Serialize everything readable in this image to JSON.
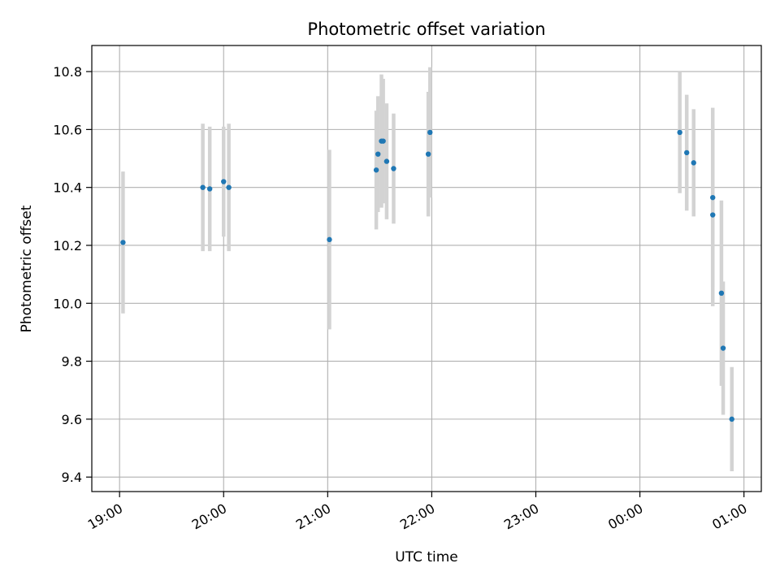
{
  "chart_data": {
    "type": "scatter",
    "title": "Photometric offset variation",
    "xlabel": "UTC time",
    "ylabel": "Photometric offset",
    "x_axis_kind": "time",
    "x_ticks": [
      "19:00",
      "20:00",
      "21:00",
      "22:00",
      "23:00",
      "00:00",
      "01:00"
    ],
    "xlim": [
      "18:44",
      "01:10"
    ],
    "ylim": [
      9.35,
      10.89
    ],
    "y_ticks": [
      9.4,
      9.6,
      9.8,
      10.0,
      10.2,
      10.4,
      10.6,
      10.8
    ],
    "grid": true,
    "colors": {
      "point": "#1f77b4",
      "errorbar": "#d3d3d3",
      "grid": "#b0b0b0"
    },
    "points": [
      {
        "t": "19:02",
        "y": 10.21,
        "err": 0.245
      },
      {
        "t": "19:48",
        "y": 10.4,
        "err": 0.22
      },
      {
        "t": "19:52",
        "y": 10.395,
        "err": 0.215
      },
      {
        "t": "20:00",
        "y": 10.42,
        "err": 0.19
      },
      {
        "t": "20:03",
        "y": 10.4,
        "err": 0.22
      },
      {
        "t": "21:01",
        "y": 10.22,
        "err": 0.31
      },
      {
        "t": "21:28",
        "y": 10.46,
        "err": 0.205
      },
      {
        "t": "21:29",
        "y": 10.515,
        "err": 0.2
      },
      {
        "t": "21:31",
        "y": 10.56,
        "err": 0.23
      },
      {
        "t": "21:32",
        "y": 10.56,
        "err": 0.215
      },
      {
        "t": "21:34",
        "y": 10.49,
        "err": 0.2
      },
      {
        "t": "21:38",
        "y": 10.465,
        "err": 0.19
      },
      {
        "t": "21:58",
        "y": 10.515,
        "err": 0.215
      },
      {
        "t": "21:59",
        "y": 10.59,
        "err": 0.225
      },
      {
        "t": "00:23",
        "y": 10.59,
        "err": 0.21
      },
      {
        "t": "00:27",
        "y": 10.52,
        "err": 0.2
      },
      {
        "t": "00:31",
        "y": 10.485,
        "err": 0.185
      },
      {
        "t": "00:42",
        "y": 10.365,
        "err": 0.31
      },
      {
        "t": "00:42",
        "y": 10.305,
        "err": 0.315
      },
      {
        "t": "00:47",
        "y": 10.035,
        "err": 0.32
      },
      {
        "t": "00:48",
        "y": 9.845,
        "err": 0.23
      },
      {
        "t": "00:53",
        "y": 9.6,
        "err": 0.18
      }
    ]
  }
}
